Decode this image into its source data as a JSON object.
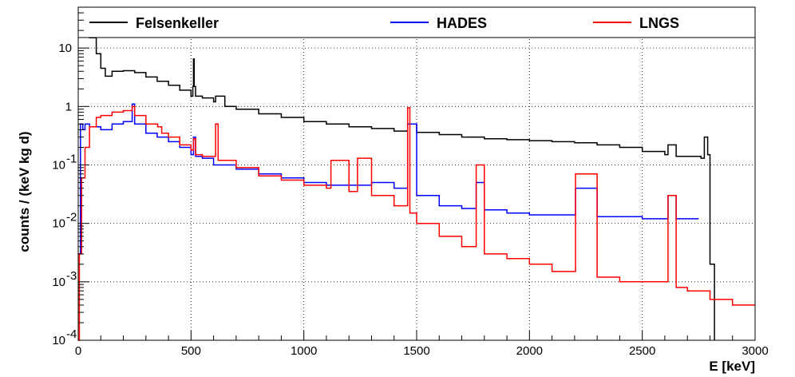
{
  "chart_data": {
    "type": "line",
    "xlabel": "E [keV]",
    "ylabel": "counts / (keV kg d)",
    "xlim": [
      0,
      3000
    ],
    "ylim": [
      0.0001,
      50
    ],
    "yscale": "log",
    "grid": true,
    "legend_position": "top",
    "x_ticks": [
      0,
      500,
      1000,
      1500,
      2000,
      2500,
      3000
    ],
    "x_tick_labels": [
      "0",
      "500",
      "1000",
      "1500",
      "2000",
      "2500",
      "3000"
    ],
    "y_ticks": [
      0.0001,
      0.001,
      0.01,
      0.1,
      1,
      10
    ],
    "y_tick_labels": [
      [
        "10",
        "-4"
      ],
      [
        "10",
        "-3"
      ],
      [
        "10",
        "-2"
      ],
      [
        "10",
        "-1"
      ],
      [
        "1",
        ""
      ],
      [
        "10",
        ""
      ]
    ],
    "series": [
      {
        "name": "Felsenkeller",
        "color": "#000000",
        "x": [
          0,
          15,
          30,
          50,
          80,
          100,
          120,
          150,
          200,
          250,
          300,
          350,
          400,
          450,
          500,
          508,
          511,
          514,
          520,
          550,
          600,
          609,
          650,
          700,
          800,
          900,
          1000,
          1100,
          1200,
          1300,
          1400,
          1460,
          1500,
          1600,
          1700,
          1760,
          1800,
          1900,
          2000,
          2100,
          2200,
          2300,
          2400,
          2500,
          2600,
          2614,
          2650,
          2700,
          2760,
          2775,
          2790,
          2800,
          2820
        ],
        "y": [
          25,
          30,
          25,
          15,
          8,
          4.5,
          3.3,
          4.0,
          4.1,
          3.8,
          3.2,
          2.7,
          2.3,
          1.9,
          1.5,
          2.2,
          6.5,
          2.2,
          1.5,
          1.4,
          1.2,
          1.5,
          1.0,
          0.9,
          0.75,
          0.65,
          0.55,
          0.5,
          0.45,
          0.42,
          0.38,
          0.5,
          0.36,
          0.33,
          0.3,
          0.3,
          0.28,
          0.27,
          0.26,
          0.25,
          0.24,
          0.22,
          0.2,
          0.17,
          0.15,
          0.22,
          0.14,
          0.14,
          0.13,
          0.3,
          0.15,
          0.002,
          0.0001
        ]
      },
      {
        "name": "HADES",
        "color": "#0000ff",
        "x": [
          0,
          10,
          20,
          30,
          50,
          80,
          100,
          150,
          200,
          239,
          250,
          300,
          350,
          400,
          450,
          500,
          511,
          520,
          550,
          600,
          700,
          800,
          900,
          1000,
          1100,
          1200,
          1300,
          1400,
          1460,
          1500,
          1600,
          1700,
          1764,
          1800,
          1900,
          2000,
          2100,
          2204,
          2300,
          2400,
          2500,
          2614,
          2650,
          2700,
          2750
        ],
        "y": [
          0.003,
          0.5,
          0.4,
          0.5,
          0.45,
          0.45,
          0.4,
          0.5,
          0.55,
          1.1,
          0.5,
          0.35,
          0.3,
          0.25,
          0.2,
          0.15,
          0.3,
          0.14,
          0.13,
          0.1,
          0.085,
          0.07,
          0.06,
          0.05,
          0.045,
          0.045,
          0.05,
          0.04,
          0.5,
          0.03,
          0.02,
          0.018,
          0.05,
          0.017,
          0.015,
          0.014,
          0.014,
          0.04,
          0.013,
          0.013,
          0.012,
          0.03,
          0.012,
          0.012,
          0.012
        ]
      },
      {
        "name": "LNGS",
        "color": "#ff0000",
        "x": [
          0,
          5,
          15,
          30,
          50,
          80,
          100,
          150,
          200,
          239,
          250,
          300,
          352,
          370,
          400,
          450,
          500,
          511,
          520,
          550,
          609,
          620,
          700,
          800,
          900,
          1000,
          1100,
          1120,
          1200,
          1238,
          1300,
          1400,
          1460,
          1470,
          1500,
          1600,
          1700,
          1764,
          1800,
          1900,
          2000,
          2100,
          2204,
          2300,
          2400,
          2500,
          2614,
          2650,
          2700,
          2800,
          2900,
          3000
        ],
        "y": [
          0.0001,
          0.003,
          0.06,
          0.2,
          0.45,
          0.65,
          0.7,
          0.8,
          0.85,
          1.0,
          0.7,
          0.5,
          0.45,
          0.35,
          0.3,
          0.22,
          0.18,
          0.28,
          0.15,
          0.14,
          0.5,
          0.12,
          0.09,
          0.065,
          0.055,
          0.045,
          0.04,
          0.12,
          0.035,
          0.13,
          0.03,
          0.02,
          0.95,
          0.015,
          0.01,
          0.006,
          0.004,
          0.1,
          0.003,
          0.0025,
          0.002,
          0.0015,
          0.07,
          0.0012,
          0.001,
          0.001,
          0.03,
          0.0008,
          0.0007,
          0.0005,
          0.0004,
          0.0004
        ]
      }
    ]
  }
}
